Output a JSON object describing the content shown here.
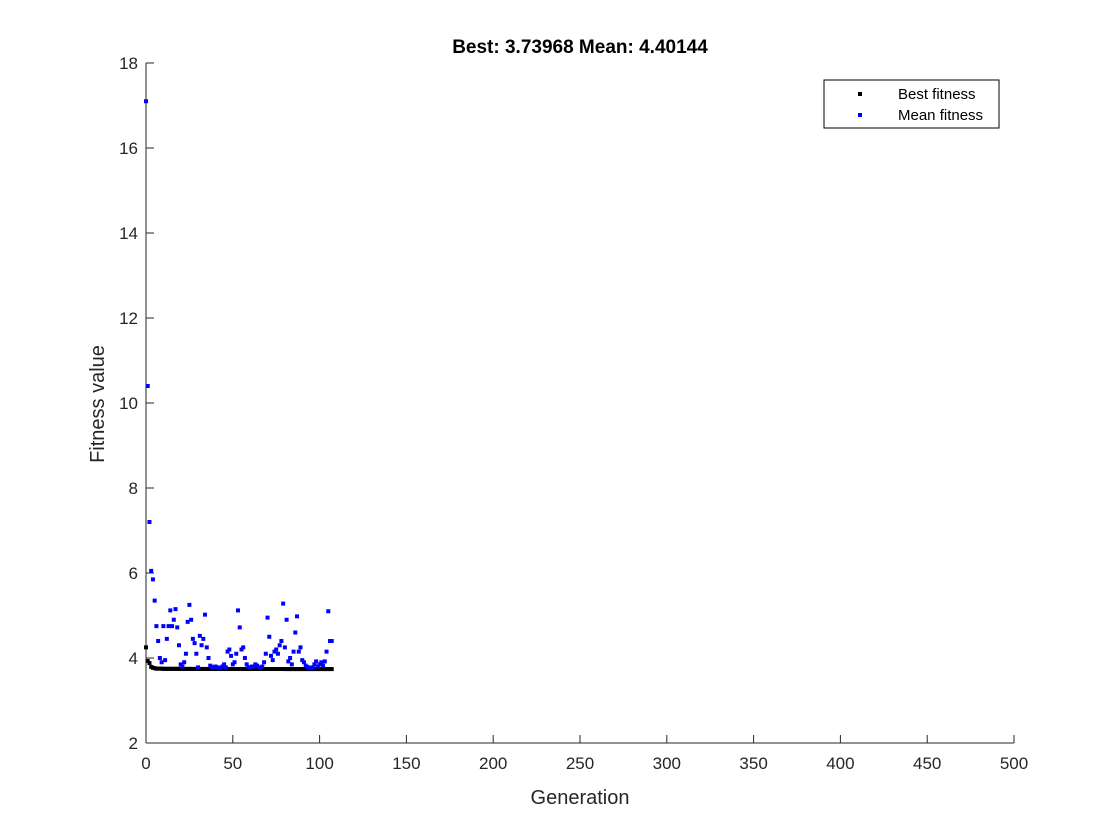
{
  "chart_data": {
    "type": "scatter",
    "title": "Best: 3.73968 Mean: 4.40144",
    "xlabel": "Generation",
    "ylabel": "Fitness value",
    "xlim": [
      0,
      500
    ],
    "ylim": [
      2,
      18
    ],
    "xticks": [
      0,
      50,
      100,
      150,
      200,
      250,
      300,
      350,
      400,
      450,
      500
    ],
    "yticks": [
      2,
      4,
      6,
      8,
      10,
      12,
      14,
      16,
      18
    ],
    "grid": false,
    "legend_position": "top-right",
    "colors": {
      "best": "#000000",
      "mean": "#0000ff",
      "axis": "#262626"
    },
    "series": [
      {
        "name": "Best fitness",
        "color": "#000000",
        "marker": "square",
        "x": [
          0,
          1,
          2,
          3,
          4,
          5,
          6,
          7,
          8,
          9,
          10,
          11,
          12,
          13,
          14,
          15,
          16,
          17,
          18,
          19,
          20,
          21,
          22,
          23,
          24,
          25,
          26,
          27,
          28,
          29,
          30,
          31,
          32,
          33,
          34,
          35,
          36,
          37,
          38,
          39,
          40,
          41,
          42,
          43,
          44,
          45,
          46,
          47,
          48,
          49,
          50,
          51,
          52,
          53,
          54,
          55,
          56,
          57,
          58,
          59,
          60,
          61,
          62,
          63,
          64,
          65,
          66,
          67,
          68,
          69,
          70,
          71,
          72,
          73,
          74,
          75,
          76,
          77,
          78,
          79,
          80,
          81,
          82,
          83,
          84,
          85,
          86,
          87,
          88,
          89,
          90,
          91,
          92,
          93,
          94,
          95,
          96,
          97,
          98,
          99,
          100,
          101,
          102,
          103,
          104,
          105,
          106,
          107
        ],
        "y": [
          4.25,
          3.93,
          3.88,
          3.79,
          3.77,
          3.76,
          3.75,
          3.75,
          3.75,
          3.75,
          3.745,
          3.745,
          3.745,
          3.745,
          3.745,
          3.745,
          3.745,
          3.745,
          3.745,
          3.745,
          3.745,
          3.743,
          3.743,
          3.743,
          3.743,
          3.743,
          3.743,
          3.743,
          3.743,
          3.743,
          3.742,
          3.742,
          3.742,
          3.742,
          3.742,
          3.742,
          3.742,
          3.742,
          3.742,
          3.742,
          3.741,
          3.741,
          3.741,
          3.741,
          3.741,
          3.741,
          3.741,
          3.741,
          3.741,
          3.741,
          3.741,
          3.741,
          3.741,
          3.741,
          3.741,
          3.741,
          3.741,
          3.741,
          3.741,
          3.741,
          3.741,
          3.741,
          3.741,
          3.741,
          3.741,
          3.741,
          3.741,
          3.741,
          3.741,
          3.741,
          3.741,
          3.741,
          3.741,
          3.741,
          3.741,
          3.741,
          3.741,
          3.741,
          3.741,
          3.741,
          3.74,
          3.74,
          3.74,
          3.74,
          3.74,
          3.74,
          3.74,
          3.74,
          3.74,
          3.74,
          3.74,
          3.74,
          3.74,
          3.74,
          3.74,
          3.74,
          3.74,
          3.74,
          3.74,
          3.74,
          3.74,
          3.74,
          3.74,
          3.74,
          3.74,
          3.74,
          3.7397,
          3.7397
        ]
      },
      {
        "name": "Mean fitness",
        "color": "#0000ff",
        "marker": "square",
        "x": [
          0,
          1,
          2,
          3,
          4,
          5,
          6,
          7,
          8,
          9,
          10,
          11,
          12,
          13,
          14,
          15,
          16,
          17,
          18,
          19,
          20,
          21,
          22,
          23,
          24,
          25,
          26,
          27,
          28,
          29,
          30,
          31,
          32,
          33,
          34,
          35,
          36,
          37,
          38,
          39,
          40,
          41,
          42,
          43,
          44,
          45,
          46,
          47,
          48,
          49,
          50,
          51,
          52,
          53,
          54,
          55,
          56,
          57,
          58,
          59,
          60,
          61,
          62,
          63,
          64,
          65,
          66,
          67,
          68,
          69,
          70,
          71,
          72,
          73,
          74,
          75,
          76,
          77,
          78,
          79,
          80,
          81,
          82,
          83,
          84,
          85,
          86,
          87,
          88,
          89,
          90,
          91,
          92,
          93,
          94,
          95,
          96,
          97,
          98,
          99,
          100,
          101,
          102,
          103,
          104,
          105,
          106,
          107
        ],
        "y": [
          17.1,
          10.4,
          7.2,
          6.05,
          5.85,
          5.35,
          4.75,
          4.4,
          4.0,
          3.9,
          4.75,
          3.95,
          4.45,
          4.75,
          5.12,
          4.75,
          4.9,
          5.15,
          4.72,
          4.3,
          3.85,
          3.8,
          3.9,
          4.1,
          4.85,
          5.25,
          4.9,
          4.45,
          4.35,
          4.1,
          3.78,
          4.52,
          4.3,
          4.45,
          5.02,
          4.25,
          4.0,
          3.82,
          3.78,
          3.79,
          3.8,
          3.78,
          3.76,
          3.77,
          3.8,
          3.85,
          3.78,
          4.15,
          4.2,
          4.05,
          3.85,
          3.9,
          4.1,
          5.12,
          4.72,
          4.2,
          4.25,
          4.0,
          3.85,
          3.78,
          3.78,
          3.8,
          3.8,
          3.85,
          3.82,
          3.78,
          3.77,
          3.8,
          3.9,
          4.1,
          4.95,
          4.5,
          4.05,
          3.95,
          4.15,
          4.2,
          4.1,
          4.3,
          4.4,
          5.28,
          4.25,
          4.9,
          3.92,
          4.0,
          3.85,
          4.15,
          4.6,
          4.98,
          4.15,
          4.25,
          3.95,
          3.9,
          3.82,
          3.79,
          3.76,
          3.77,
          3.78,
          3.85,
          3.92,
          3.8,
          3.85,
          3.9,
          3.82,
          3.92,
          4.15,
          5.1,
          4.4,
          4.4
        ]
      }
    ]
  }
}
